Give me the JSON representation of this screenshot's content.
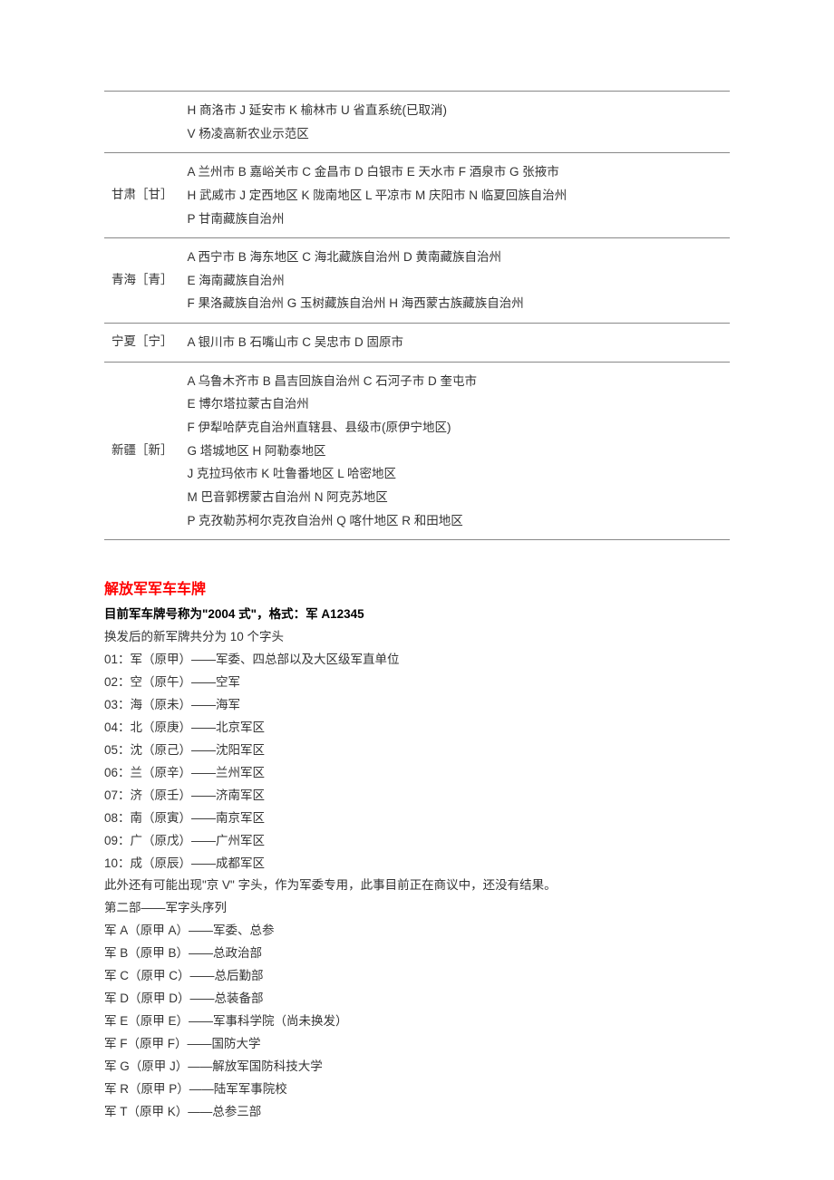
{
  "table": {
    "rows": [
      {
        "province": "",
        "regions": "H 商洛市 J 延安市 K 榆林市 U 省直系统(已取消)\nV 杨凌高新农业示范区"
      },
      {
        "province": "甘肃［甘］",
        "regions": "A 兰州市 B 嘉峪关市 C 金昌市 D 白银市 E 天水市 F 酒泉市 G 张掖市\nH 武威市 J 定西地区 K 陇南地区 L 平凉市 M 庆阳市 N 临夏回族自治州\nP 甘南藏族自治州"
      },
      {
        "province": "青海［青］",
        "regions": "A 西宁市 B 海东地区 C 海北藏族自治州 D 黄南藏族自治州\nE 海南藏族自治州\nF 果洛藏族自治州 G 玉树藏族自治州 H 海西蒙古族藏族自治州"
      },
      {
        "province": "宁夏［宁］",
        "regions": "A 银川市 B 石嘴山市 C 吴忠市 D 固原市"
      },
      {
        "province": "新疆［新］",
        "regions": "A 乌鲁木齐市 B 昌吉回族自治州 C 石河子市 D 奎屯市\nE 博尔塔拉蒙古自治州\nF 伊犁哈萨克自治州直辖县、县级市(原伊宁地区)\nG 塔城地区 H 阿勒泰地区\nJ 克拉玛依市 K 吐鲁番地区 L 哈密地区\nM 巴音郭楞蒙古自治州 N 阿克苏地区\nP 克孜勒苏柯尔克孜自治州 Q 喀什地区 R 和田地区"
      }
    ]
  },
  "section": {
    "title": "解放军军车车牌",
    "subtitle": "目前军车牌号称为\"2004 式\"，格式：军 A12345",
    "intro": "换发后的新军牌共分为 10 个字头",
    "list1": [
      "01：军（原甲）——军委、四总部以及大区级军直单位",
      "02：空（原午）——空军",
      "03：海（原未）——海军",
      "04：北（原庚）——北京军区",
      "05：沈（原己）——沈阳军区",
      "06：兰（原辛）——兰州军区",
      "07：济（原壬）——济南军区",
      "08：南（原寅）——南京军区",
      "09：广（原戊）——广州军区",
      "10：成（原辰）——成都军区"
    ],
    "note": "此外还有可能出现\"京 V\" 字头，作为军委专用，此事目前正在商议中，还没有结果。",
    "part2_title": "第二部——军字头序列",
    "list2": [
      "军 A（原甲 A）——军委、总参",
      "军 B（原甲 B）——总政治部",
      "军 C（原甲 C）——总后勤部",
      "军 D（原甲 D）——总装备部",
      "军 E（原甲 E）——军事科学院（尚未换发）",
      "军 F（原甲 F）——国防大学",
      "军 G（原甲 J）——解放军国防科技大学",
      "军 R（原甲 P）——陆军军事院校",
      "军 T（原甲 K）——总参三部"
    ]
  }
}
